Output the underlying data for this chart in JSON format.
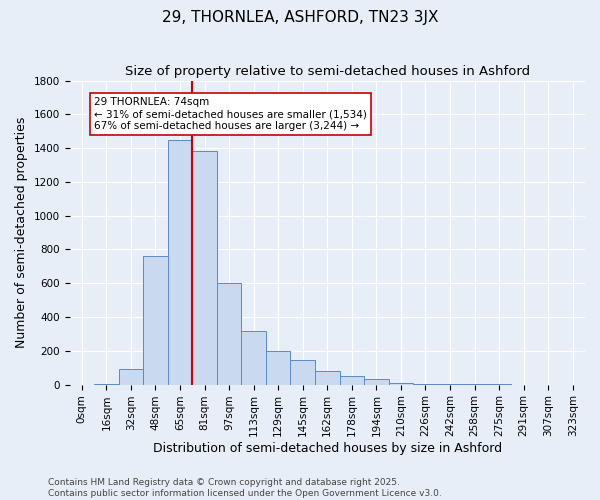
{
  "title": "29, THORNLEA, ASHFORD, TN23 3JX",
  "subtitle": "Size of property relative to semi-detached houses in Ashford",
  "xlabel": "Distribution of semi-detached houses by size in Ashford",
  "ylabel": "Number of semi-detached properties",
  "bin_labels": [
    "0sqm",
    "16sqm",
    "32sqm",
    "48sqm",
    "65sqm",
    "81sqm",
    "97sqm",
    "113sqm",
    "129sqm",
    "145sqm",
    "162sqm",
    "178sqm",
    "194sqm",
    "210sqm",
    "226sqm",
    "242sqm",
    "258sqm",
    "275sqm",
    "291sqm",
    "307sqm",
    "323sqm"
  ],
  "bar_values": [
    0,
    5,
    95,
    760,
    1450,
    1380,
    600,
    320,
    200,
    145,
    80,
    50,
    35,
    10,
    5,
    3,
    2,
    1,
    0,
    0,
    0
  ],
  "bar_color": "#c8d9f0",
  "bar_edge_color": "#5b8ac8",
  "property_size": 74,
  "property_bin_index": 4,
  "vline_color": "#cc0000",
  "annotation_line1": "29 THORNLEA: 74sqm",
  "annotation_line2": "← 31% of semi-detached houses are smaller (1,534)",
  "annotation_line3": "67% of semi-detached houses are larger (3,244) →",
  "annotation_box_color": "#ffffff",
  "annotation_box_edge": "#cc0000",
  "ylim": [
    0,
    1800
  ],
  "yticks": [
    0,
    200,
    400,
    600,
    800,
    1000,
    1200,
    1400,
    1600,
    1800
  ],
  "footer_line1": "Contains HM Land Registry data © Crown copyright and database right 2025.",
  "footer_line2": "Contains public sector information licensed under the Open Government Licence v3.0.",
  "bg_color": "#e8eef8",
  "plot_bg_color": "#e8eef8",
  "grid_color": "#ffffff",
  "title_fontsize": 11,
  "axis_label_fontsize": 9,
  "tick_fontsize": 7.5,
  "footer_fontsize": 6.5
}
